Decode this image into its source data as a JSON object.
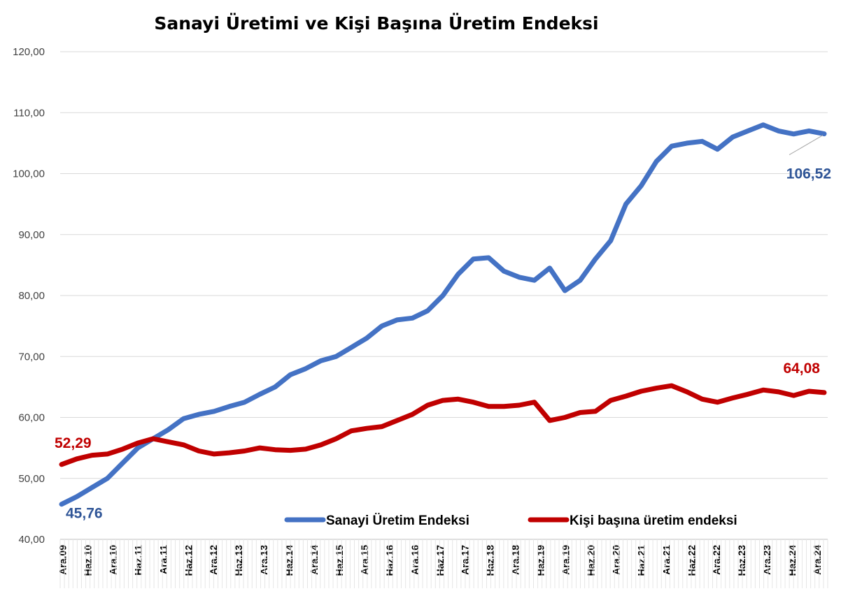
{
  "chart_data": {
    "type": "line",
    "title": "Sanayi Üretimi ve Kişi Başına Üretim Endeksi",
    "xlabel": "",
    "ylabel": "",
    "ylim": [
      40,
      120
    ],
    "yticks": [
      "40,00",
      "50,00",
      "60,00",
      "70,00",
      "80,00",
      "90,00",
      "100,00",
      "110,00",
      "120,00"
    ],
    "grid": true,
    "legend_position": "bottom-right, inside plot",
    "x_tick_labels": [
      "Ara.09",
      "Haz.10",
      "Ara.10",
      "Haz.11",
      "Ara.11",
      "Haz.12",
      "Ara.12",
      "Haz.13",
      "Ara.13",
      "Haz.14",
      "Ara.14",
      "Haz.15",
      "Ara.15",
      "Haz.16",
      "Ara.16",
      "Haz.17",
      "Ara.17",
      "Haz.18",
      "Ara.18",
      "Haz.19",
      "Ara.19",
      "Haz.20",
      "Ara.20",
      "Haz.21",
      "Ara.21",
      "Haz.22",
      "Ara.22",
      "Haz.23",
      "Ara.23",
      "Haz.24",
      "Ara.24"
    ],
    "series": [
      {
        "name": "Sanayi Üretim Endeksi",
        "color": "#4472C4",
        "values": [
          45.76,
          47.0,
          48.5,
          50.0,
          52.5,
          55.0,
          56.5,
          58.0,
          59.8,
          60.5,
          61.0,
          61.8,
          62.5,
          63.8,
          65.0,
          67.0,
          68.0,
          69.3,
          70.0,
          71.5,
          73.0,
          75.0,
          76.0,
          76.3,
          77.5,
          80.0,
          83.5,
          86.0,
          86.2,
          84.0,
          83.0,
          82.5,
          84.5,
          80.8,
          82.5,
          86.0,
          89.0,
          95.0,
          98.0,
          102.0,
          104.5,
          105.0,
          105.3,
          104.0,
          106.0,
          107.0,
          108.0,
          107.0,
          106.5,
          107.0,
          106.52
        ],
        "labels": [
          {
            "index": 0,
            "text": "45,76"
          },
          {
            "index": 50,
            "text": "106,52"
          }
        ]
      },
      {
        "name": "Kişi başına üretim endeksi",
        "color": "#C00000",
        "values": [
          52.29,
          53.2,
          53.8,
          54.0,
          54.8,
          55.8,
          56.5,
          56.0,
          55.5,
          54.5,
          54.0,
          54.2,
          54.5,
          55.0,
          54.7,
          54.6,
          54.8,
          55.5,
          56.5,
          57.8,
          58.2,
          58.5,
          59.5,
          60.5,
          62.0,
          62.8,
          63.0,
          62.5,
          61.8,
          61.8,
          62.0,
          62.5,
          59.5,
          60.0,
          60.8,
          61.0,
          62.8,
          63.5,
          64.3,
          64.8,
          65.2,
          64.2,
          63.0,
          62.5,
          63.2,
          63.8,
          64.5,
          64.2,
          63.6,
          64.3,
          64.08
        ],
        "labels": [
          {
            "index": 0,
            "text": "52,29"
          },
          {
            "index": 50,
            "text": "64,08"
          }
        ]
      }
    ]
  }
}
